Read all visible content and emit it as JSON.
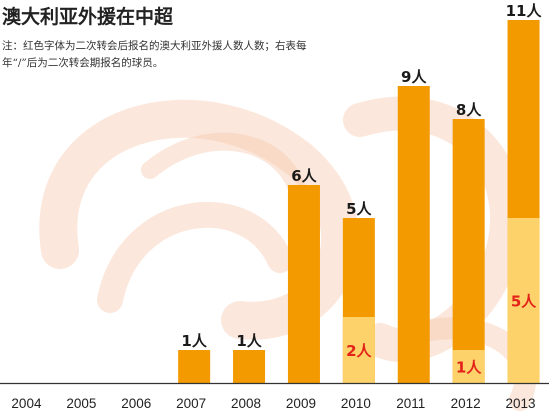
{
  "title": "澳大利亚外援在中超",
  "note": "注：红色字体为二次转会后报名的澳大利亚外援人数人数；右表每年“/”后为二次转会期报名的球员。",
  "unit": "人",
  "colors": {
    "bar_total": "#f39a00",
    "bar_second": "#fdd26a",
    "label_total": "#1a1a1a",
    "label_second": "#e2231a",
    "axis": "#333333",
    "swirl": "#f7c9b0"
  },
  "chart_data": {
    "type": "bar",
    "categories": [
      "2004",
      "2005",
      "2006",
      "2007",
      "2008",
      "2009",
      "2010",
      "2011",
      "2012",
      "2013"
    ],
    "series": [
      {
        "values": [
          0,
          0,
          0,
          1,
          1,
          6,
          5,
          9,
          8,
          11
        ]
      },
      {
        "values": [
          0,
          0,
          0,
          0,
          0,
          0,
          2,
          0,
          1,
          5
        ]
      }
    ],
    "labels_total": [
      "",
      "",
      "",
      "1人",
      "1人",
      "6人",
      "5人",
      "9人",
      "8人",
      "11人"
    ],
    "labels_second": [
      "",
      "",
      "",
      "",
      "",
      "",
      "2人",
      "",
      "1人",
      "5人"
    ],
    "ylim": [
      0,
      11
    ],
    "xlabel": "",
    "ylabel": "",
    "grid": false,
    "legend": "none"
  }
}
